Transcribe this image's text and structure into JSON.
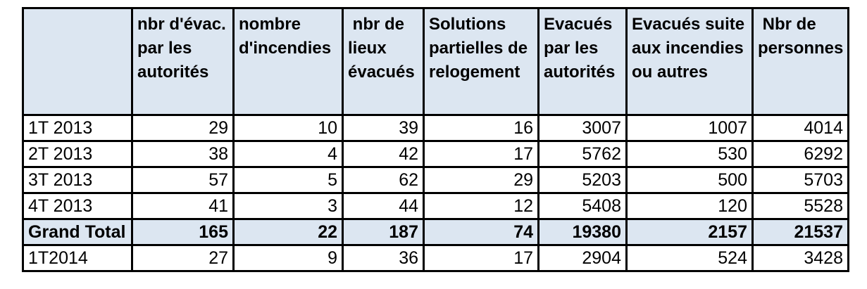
{
  "table": {
    "title_semantic": "evacuations-statistics-table",
    "header": {
      "cells": [
        "",
        "nbr d'évac.\npar les\nautorités",
        "nombre\nd'incendies",
        " nbr de\nlieux\névacués",
        "Solutions\npartielles de\nrelogement",
        "Evacués\npar les\nautorités",
        "Evacués suite\naux incendies\nou autres",
        " Nbr de\npersonnes"
      ]
    },
    "rows": [
      {
        "label": "1T 2013",
        "values": [
          29,
          10,
          39,
          16,
          3007,
          1007,
          4014
        ],
        "emphasis": false
      },
      {
        "label": "2T 2013",
        "values": [
          38,
          4,
          42,
          17,
          5762,
          530,
          6292
        ],
        "emphasis": false
      },
      {
        "label": "3T 2013",
        "values": [
          57,
          5,
          62,
          29,
          5203,
          500,
          5703
        ],
        "emphasis": false
      },
      {
        "label": "4T 2013",
        "values": [
          41,
          3,
          44,
          12,
          5408,
          120,
          5528
        ],
        "emphasis": false
      },
      {
        "label": "Grand Total",
        "values": [
          165,
          22,
          187,
          74,
          19380,
          2157,
          21537
        ],
        "emphasis": true
      },
      {
        "label": "1T2014",
        "values": [
          27,
          9,
          36,
          17,
          2904,
          524,
          3428
        ],
        "emphasis": false
      }
    ],
    "colors": {
      "header_bg": "#dce6f1",
      "total_row_bg": "#dce6f1",
      "border": "#000000",
      "page_bg": "#ffffff"
    }
  }
}
